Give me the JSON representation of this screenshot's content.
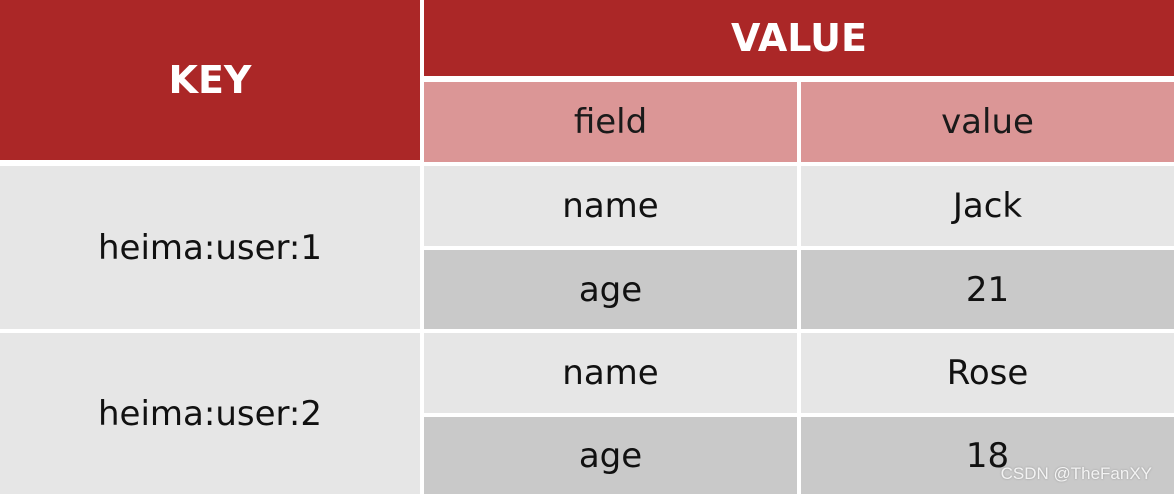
{
  "table": {
    "header_key": "KEY",
    "header_value": "VALUE",
    "subheader_field": "field",
    "subheader_value": "value",
    "rows": [
      {
        "key": "heima:user:1",
        "entries": [
          {
            "field": "name",
            "value": "Jack"
          },
          {
            "field": "age",
            "value": "21"
          }
        ]
      },
      {
        "key": "heima:user:2",
        "entries": [
          {
            "field": "name",
            "value": "Rose"
          },
          {
            "field": "age",
            "value": "18"
          }
        ]
      }
    ]
  },
  "watermark": "CSDN @TheFanXY",
  "colors": {
    "header": "#ab2727",
    "subheader": "#db9696",
    "row_light": "#e6e6e6",
    "row_dark": "#c9c9c9"
  }
}
